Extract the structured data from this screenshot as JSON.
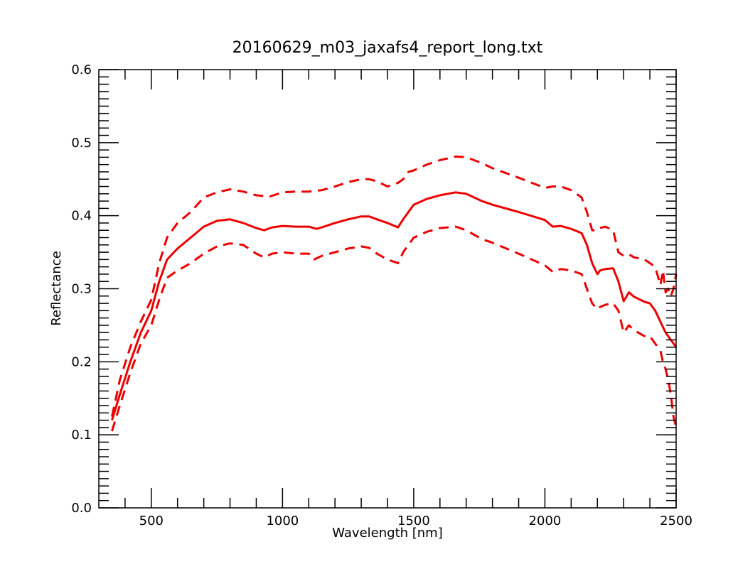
{
  "chart_data": {
    "type": "line",
    "title": "20160629_m03_jaxafs4_report_long.txt",
    "xlabel": "Wavelength [nm]",
    "ylabel": "Reflectance",
    "xlim": [
      300,
      2500
    ],
    "ylim": [
      0.0,
      0.6
    ],
    "x_ticks": [
      500,
      1000,
      1500,
      2000,
      2500
    ],
    "x_tick_labels": [
      "500",
      "1000",
      "1500",
      "2000",
      "2500"
    ],
    "y_ticks": [
      0.0,
      0.1,
      0.2,
      0.3,
      0.4,
      0.5,
      0.6
    ],
    "y_tick_labels": [
      "0.0",
      "0.1",
      "0.2",
      "0.3",
      "0.4",
      "0.5",
      "0.6"
    ],
    "grid": false,
    "legend": "none",
    "series": [
      {
        "style": "solid",
        "color": "#ee0000",
        "x": [
          350,
          380,
          420,
          460,
          500,
          530,
          560,
          600,
          650,
          700,
          750,
          800,
          850,
          900,
          930,
          960,
          1000,
          1050,
          1100,
          1130,
          1150,
          1200,
          1250,
          1300,
          1330,
          1360,
          1400,
          1440,
          1460,
          1480,
          1500,
          1550,
          1600,
          1660,
          1700,
          1760,
          1800,
          1900,
          2000,
          2030,
          2060,
          2100,
          2140,
          2160,
          2180,
          2200,
          2210,
          2230,
          2260,
          2280,
          2300,
          2320,
          2340,
          2380,
          2400,
          2420,
          2440,
          2460,
          2480,
          2500
        ],
        "y": [
          0.12,
          0.155,
          0.2,
          0.24,
          0.27,
          0.31,
          0.34,
          0.355,
          0.37,
          0.385,
          0.393,
          0.395,
          0.39,
          0.383,
          0.38,
          0.384,
          0.386,
          0.385,
          0.385,
          0.382,
          0.384,
          0.39,
          0.395,
          0.399,
          0.399,
          0.395,
          0.39,
          0.384,
          0.395,
          0.405,
          0.415,
          0.423,
          0.428,
          0.432,
          0.43,
          0.42,
          0.415,
          0.405,
          0.394,
          0.385,
          0.386,
          0.382,
          0.376,
          0.36,
          0.335,
          0.32,
          0.325,
          0.327,
          0.328,
          0.31,
          0.283,
          0.295,
          0.289,
          0.282,
          0.28,
          0.27,
          0.255,
          0.24,
          0.23,
          0.22
        ]
      },
      {
        "style": "dashed",
        "color": "#ee0000",
        "x": [
          350,
          380,
          420,
          460,
          500,
          530,
          560,
          600,
          650,
          700,
          750,
          800,
          850,
          900,
          950,
          1000,
          1050,
          1100,
          1150,
          1200,
          1250,
          1300,
          1330,
          1360,
          1400,
          1440,
          1460,
          1480,
          1500,
          1550,
          1600,
          1660,
          1700,
          1760,
          1800,
          1900,
          2000,
          2030,
          2060,
          2100,
          2140,
          2160,
          2180,
          2200,
          2210,
          2230,
          2260,
          2280,
          2300,
          2320,
          2340,
          2380,
          2400,
          2420,
          2440,
          2450,
          2460,
          2470,
          2480,
          2490,
          2500
        ],
        "y": [
          0.125,
          0.175,
          0.22,
          0.255,
          0.285,
          0.335,
          0.37,
          0.39,
          0.405,
          0.425,
          0.432,
          0.436,
          0.433,
          0.428,
          0.426,
          0.432,
          0.433,
          0.433,
          0.435,
          0.44,
          0.446,
          0.45,
          0.45,
          0.447,
          0.44,
          0.445,
          0.45,
          0.46,
          0.462,
          0.47,
          0.476,
          0.481,
          0.48,
          0.472,
          0.465,
          0.452,
          0.438,
          0.44,
          0.44,
          0.435,
          0.425,
          0.405,
          0.38,
          0.38,
          0.383,
          0.385,
          0.38,
          0.35,
          0.345,
          0.347,
          0.343,
          0.34,
          0.335,
          0.33,
          0.305,
          0.325,
          0.295,
          0.3,
          0.29,
          0.3,
          0.32
        ]
      },
      {
        "style": "dashed",
        "color": "#ee0000",
        "x": [
          350,
          380,
          420,
          460,
          500,
          530,
          560,
          600,
          650,
          700,
          750,
          800,
          850,
          900,
          930,
          960,
          1000,
          1050,
          1100,
          1120,
          1150,
          1200,
          1250,
          1300,
          1330,
          1360,
          1400,
          1440,
          1460,
          1480,
          1500,
          1550,
          1600,
          1660,
          1700,
          1760,
          1800,
          1900,
          2000,
          2030,
          2060,
          2100,
          2140,
          2160,
          2180,
          2200,
          2210,
          2230,
          2260,
          2280,
          2300,
          2320,
          2340,
          2380,
          2400,
          2420,
          2440,
          2450,
          2460,
          2470,
          2480,
          2490,
          2500
        ],
        "y": [
          0.105,
          0.14,
          0.185,
          0.225,
          0.25,
          0.285,
          0.315,
          0.325,
          0.335,
          0.348,
          0.358,
          0.362,
          0.36,
          0.348,
          0.343,
          0.348,
          0.35,
          0.348,
          0.348,
          0.34,
          0.345,
          0.35,
          0.355,
          0.358,
          0.356,
          0.348,
          0.34,
          0.335,
          0.35,
          0.36,
          0.37,
          0.378,
          0.383,
          0.385,
          0.38,
          0.368,
          0.363,
          0.348,
          0.332,
          0.323,
          0.327,
          0.325,
          0.32,
          0.3,
          0.28,
          0.272,
          0.275,
          0.278,
          0.28,
          0.27,
          0.24,
          0.25,
          0.243,
          0.235,
          0.235,
          0.225,
          0.215,
          0.2,
          0.19,
          0.175,
          0.155,
          0.125,
          0.11
        ]
      }
    ]
  }
}
